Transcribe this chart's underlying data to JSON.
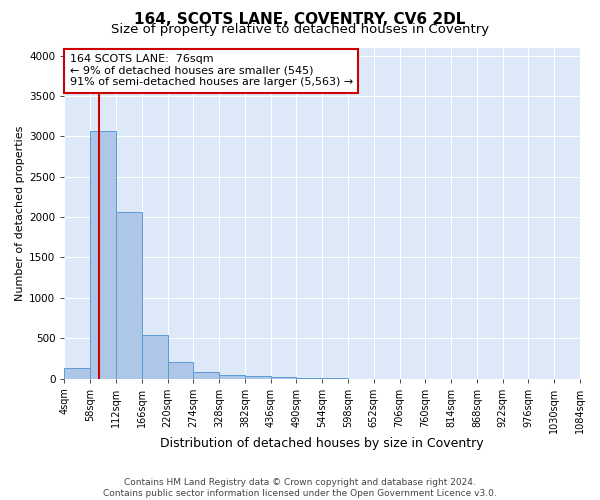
{
  "title": "164, SCOTS LANE, COVENTRY, CV6 2DL",
  "subtitle": "Size of property relative to detached houses in Coventry",
  "xlabel": "Distribution of detached houses by size in Coventry",
  "ylabel": "Number of detached properties",
  "bar_edges": [
    4,
    58,
    112,
    166,
    220,
    274,
    328,
    382,
    436,
    490,
    544,
    598,
    652,
    706,
    760,
    814,
    868,
    922,
    976,
    1030,
    1084
  ],
  "bar_heights": [
    130,
    3070,
    2060,
    545,
    210,
    75,
    45,
    30,
    20,
    10,
    5,
    0,
    0,
    0,
    0,
    0,
    0,
    0,
    0,
    0
  ],
  "bar_color": "#aec6e8",
  "bar_edge_color": "#5b9bd5",
  "vline_x": 76,
  "vline_color": "#cc0000",
  "annotation_line1": "164 SCOTS LANE:  76sqm",
  "annotation_line2": "← 9% of detached houses are smaller (545)",
  "annotation_line3": "91% of semi-detached houses are larger (5,563) →",
  "annotation_box_color": "#ffffff",
  "annotation_box_edge": "#cc0000",
  "ylim": [
    0,
    4100
  ],
  "yticks": [
    0,
    500,
    1000,
    1500,
    2000,
    2500,
    3000,
    3500,
    4000
  ],
  "bg_color": "#dde8f8",
  "grid_color": "#ffffff",
  "footer_line1": "Contains HM Land Registry data © Crown copyright and database right 2024.",
  "footer_line2": "Contains public sector information licensed under the Open Government Licence v3.0.",
  "title_fontsize": 11,
  "subtitle_fontsize": 9.5,
  "xlabel_fontsize": 9,
  "ylabel_fontsize": 8,
  "tick_label_fontsize": 7,
  "footer_fontsize": 6.5
}
